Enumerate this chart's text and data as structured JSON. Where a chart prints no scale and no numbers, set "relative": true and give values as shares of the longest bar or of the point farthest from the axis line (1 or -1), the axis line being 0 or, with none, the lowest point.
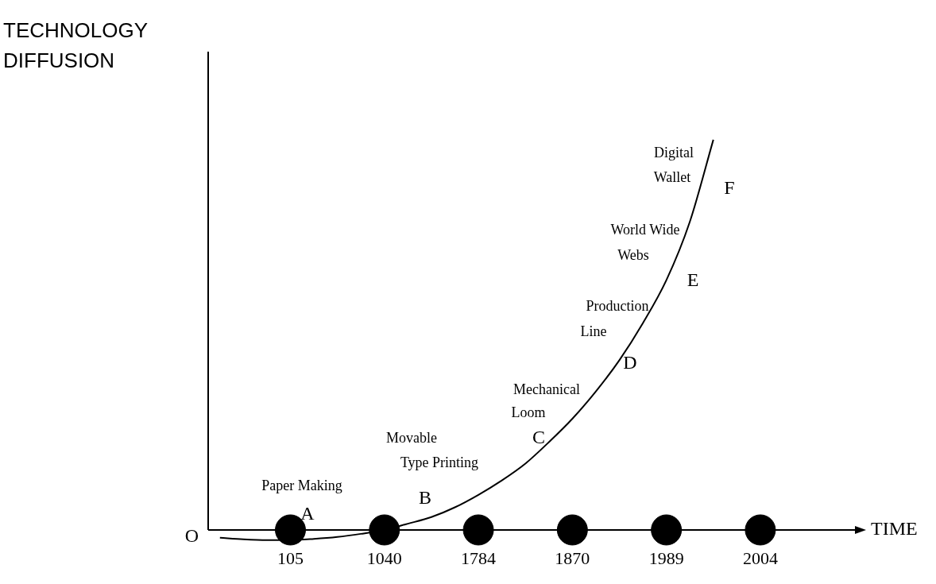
{
  "chart_data": {
    "type": "line",
    "relative": true,
    "ylabel": "TECHNOLOGY DIFFUSION",
    "xlabel": "TIME",
    "categories": [
      null,
      null,
      null,
      "105",
      null,
      null,
      null,
      "1040",
      null,
      null,
      null,
      "1784",
      null,
      null,
      null,
      "1870",
      null,
      null,
      null,
      "1989",
      null,
      null,
      null,
      "2004",
      null,
      null,
      null,
      null
    ],
    "grid": false,
    "legend": false,
    "marker": "none",
    "line_style": "solid",
    "series": [
      {
        "type": "line",
        "color": "#000000",
        "values": [
          -0.02,
          -0.024,
          -0.026,
          -0.026,
          -0.023,
          -0.018,
          -0.01,
          0,
          0.016,
          0.033,
          0.058,
          0.09,
          0.127,
          0.17,
          0.225,
          0.285,
          0.355,
          0.435,
          0.53,
          0.64,
          0.79,
          1,
          null,
          null,
          null,
          null,
          null,
          null
        ]
      },
      {
        "type": "scatter",
        "color": "#000000",
        "marker": "circle",
        "values": [
          null,
          null,
          null,
          0,
          null,
          null,
          null,
          0,
          null,
          null,
          null,
          0,
          null,
          null,
          null,
          0,
          null,
          null,
          null,
          0,
          null,
          null,
          null,
          0,
          null,
          null,
          null,
          null
        ]
      }
    ],
    "annotations": [
      "O",
      "Paper Making",
      "A",
      "Movable",
      "Type Printing",
      "B",
      "Mechanical",
      "Loom",
      "C",
      "Production",
      "Line",
      "D",
      "World Wide",
      "Webs",
      "E",
      "Digital",
      "Wallet",
      "F"
    ]
  }
}
